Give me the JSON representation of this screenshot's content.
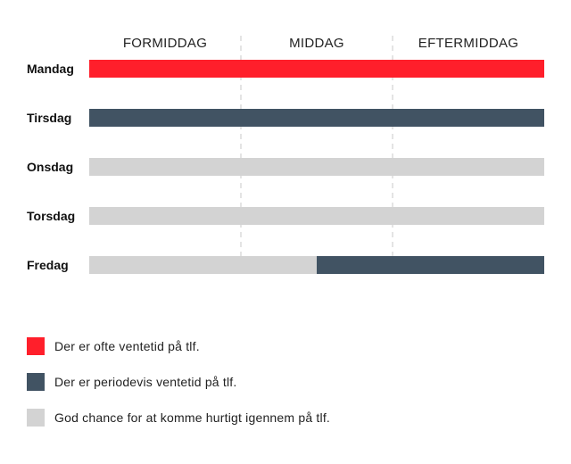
{
  "chart_data": {
    "type": "bar",
    "periods": [
      "FORMIDDAG",
      "MIDDAG",
      "EFTERMIDDAG"
    ],
    "days": [
      {
        "name": "Mandag",
        "segments": [
          {
            "from": 0,
            "to": 3,
            "status": "ofte"
          }
        ]
      },
      {
        "name": "Tirsdag",
        "segments": [
          {
            "from": 0,
            "to": 3,
            "status": "periodevis"
          }
        ]
      },
      {
        "name": "Onsdag",
        "segments": [
          {
            "from": 0,
            "to": 3,
            "status": "god"
          }
        ]
      },
      {
        "name": "Torsdag",
        "segments": [
          {
            "from": 0,
            "to": 3,
            "status": "god"
          }
        ]
      },
      {
        "name": "Fredag",
        "segments": [
          {
            "from": 0,
            "to": 1.5,
            "status": "god"
          },
          {
            "from": 1.5,
            "to": 3,
            "status": "periodevis"
          }
        ]
      }
    ],
    "legend": [
      {
        "status": "ofte",
        "label": "Der er ofte ventetid på tlf.",
        "color": "#FF1F2B"
      },
      {
        "status": "periodevis",
        "label": "Der er periodevis ventetid på tlf.",
        "color": "#415363"
      },
      {
        "status": "god",
        "label": "God chance for at komme hurtigt igennem på tlf.",
        "color": "#D3D3D3"
      }
    ],
    "grid": {
      "vertical_dividers": true,
      "style": "dashed"
    },
    "legend_position": "bottom-left"
  }
}
